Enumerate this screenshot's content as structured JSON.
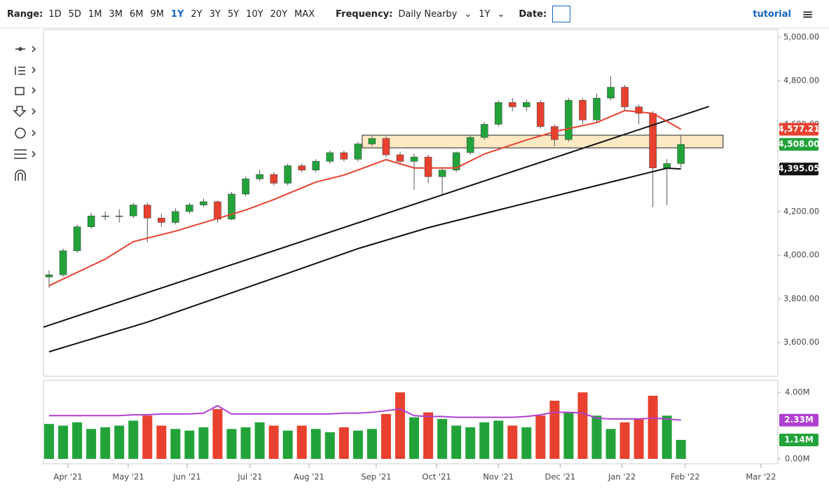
{
  "toolbar": {
    "range_label": "Range:",
    "ranges": [
      "1D",
      "5D",
      "1M",
      "3M",
      "6M",
      "9M",
      "1Y",
      "2Y",
      "3Y",
      "5Y",
      "10Y",
      "20Y",
      "MAX"
    ],
    "selected_range_index": 6,
    "frequency_label": "Frequency:",
    "frequency": "Daily Nearby",
    "period": "1Y",
    "date_label": "Date:",
    "tutorial": "tutorial"
  },
  "chart_data": {
    "type": "candlestick",
    "up_color": "#22a33a",
    "down_color": "#e8412f",
    "xlim": [
      -0.4,
      51.9
    ],
    "xticks": [
      {
        "value": 1.35,
        "label": "Apr '21"
      },
      {
        "value": 5.64,
        "label": "May '21"
      },
      {
        "value": 9.83,
        "label": "Jun '21"
      },
      {
        "value": 14.32,
        "label": "Jul '21"
      },
      {
        "value": 18.51,
        "label": "Aug '21"
      },
      {
        "value": 23.3,
        "label": "Sep '21"
      },
      {
        "value": 27.6,
        "label": "Oct '21"
      },
      {
        "value": 32.0,
        "label": "Nov '21"
      },
      {
        "value": 36.4,
        "label": "Dec '21"
      },
      {
        "value": 40.8,
        "label": "Jan '22"
      },
      {
        "value": 45.3,
        "label": "Feb '22"
      },
      {
        "value": 50.7,
        "label": "Mar '22"
      }
    ],
    "ylim": [
      3445,
      5035
    ],
    "yticks": [
      {
        "value": 3600,
        "label": "3,600.00"
      },
      {
        "value": 3800,
        "label": "3,800.00"
      },
      {
        "value": 4000,
        "label": "4,000.00"
      },
      {
        "value": 4200,
        "label": "4,200.00"
      },
      {
        "value": 4400,
        "label": "4,400.00"
      },
      {
        "value": 4600,
        "label": "4,600.00"
      },
      {
        "value": 4800,
        "label": "4,800.00"
      },
      {
        "value": 5000,
        "label": "5,000.00"
      }
    ],
    "open": [
      3900,
      3910,
      4020,
      4130,
      4180,
      4180,
      4180,
      4230,
      4170,
      4150,
      4200,
      4230,
      4245,
      4165,
      4280,
      4350,
      4370,
      4330,
      4410,
      4390,
      4430,
      4470,
      4440,
      4510,
      4535,
      4460,
      4430,
      4450,
      4360,
      4390,
      4470,
      4540,
      4600,
      4700,
      4680,
      4700,
      4590,
      4530,
      4710,
      4620,
      4720,
      4770,
      4680,
      4650,
      4400,
      4420
    ],
    "high": [
      3930,
      4030,
      4140,
      4195,
      4200,
      4210,
      4240,
      4240,
      4190,
      4215,
      4240,
      4260,
      4250,
      4290,
      4360,
      4390,
      4380,
      4420,
      4420,
      4440,
      4480,
      4480,
      4520,
      4545,
      4545,
      4475,
      4465,
      4460,
      4400,
      4475,
      4550,
      4610,
      4710,
      4720,
      4715,
      4710,
      4600,
      4720,
      4720,
      4740,
      4820,
      4780,
      4690,
      4660,
      4440,
      4550
    ],
    "low": [
      3850,
      3900,
      4010,
      4120,
      4160,
      4150,
      4170,
      4060,
      4130,
      4140,
      4190,
      4220,
      4150,
      4160,
      4270,
      4340,
      4320,
      4320,
      4380,
      4380,
      4420,
      4430,
      4430,
      4500,
      4450,
      4420,
      4300,
      4330,
      4280,
      4380,
      4460,
      4530,
      4590,
      4660,
      4660,
      4580,
      4500,
      4520,
      4600,
      4610,
      4710,
      4660,
      4600,
      4220,
      4230,
      4400
    ],
    "close": [
      3910,
      4020,
      4130,
      4180,
      4180,
      4180,
      4230,
      4170,
      4150,
      4200,
      4230,
      4245,
      4165,
      4280,
      4350,
      4370,
      4330,
      4410,
      4390,
      4430,
      4470,
      4440,
      4510,
      4535,
      4460,
      4430,
      4450,
      4360,
      4390,
      4470,
      4540,
      4600,
      4700,
      4680,
      4700,
      4590,
      4530,
      4710,
      4620,
      4720,
      4770,
      4680,
      4650,
      4400,
      4420,
      4508
    ],
    "last_price": {
      "value": 4508,
      "label": "4,508.00",
      "color": "#22a33a"
    },
    "moving_averages": [
      {
        "color": "#e8412f",
        "x": [
          0,
          4,
          6,
          9,
          11,
          14,
          16,
          19,
          21,
          24,
          26,
          29,
          31,
          34,
          36,
          39,
          41,
          43,
          45
        ],
        "values": [
          3860,
          3982,
          4062,
          4110,
          4149,
          4207,
          4255,
          4335,
          4367,
          4438,
          4400,
          4400,
          4464,
          4528,
          4566,
          4608,
          4663,
          4650,
          4577.21
        ],
        "last": {
          "value": 4577.21,
          "label": "4,577.21"
        }
      },
      {
        "color": "#111111",
        "x": [
          0,
          7,
          12,
          17,
          22,
          27,
          32,
          37,
          39,
          42,
          44,
          45
        ],
        "values": [
          3557,
          3693,
          3805,
          3917,
          4030,
          4126,
          4207,
          4287,
          4319,
          4367,
          4399,
          4395.05
        ],
        "last": {
          "value": 4395.05,
          "label": "4,395.05"
        }
      }
    ],
    "trendline": {
      "color": "#111111",
      "x": [
        -0.4,
        47
      ],
      "values": [
        3670,
        4682
      ]
    },
    "zone": {
      "color": "#fde9c4",
      "x": [
        22.3,
        48
      ],
      "values": [
        4492,
        4550
      ]
    },
    "volume": {
      "ylim": [
        0,
        4.72
      ],
      "yticks": [
        {
          "value": 0,
          "label": "0.00M"
        },
        {
          "value": 4,
          "label": "4.00M"
        }
      ],
      "values": [
        2.1,
        2.0,
        2.2,
        1.8,
        1.9,
        2.0,
        2.3,
        2.6,
        2.0,
        1.8,
        1.7,
        1.9,
        3.0,
        1.8,
        1.9,
        2.2,
        2.0,
        1.7,
        2.0,
        1.8,
        1.6,
        1.9,
        1.7,
        1.8,
        2.7,
        4.0,
        2.5,
        2.8,
        2.4,
        2.0,
        1.9,
        2.2,
        2.3,
        2.0,
        1.9,
        2.6,
        3.5,
        2.8,
        4.0,
        2.6,
        1.8,
        2.2,
        2.4,
        3.8,
        2.6,
        1.14
      ],
      "last_label": "1.14M",
      "average": {
        "color": "#b040d0",
        "values": [
          2.6,
          2.6,
          2.6,
          2.6,
          2.6,
          2.6,
          2.65,
          2.65,
          2.7,
          2.7,
          2.7,
          2.75,
          3.2,
          2.7,
          2.7,
          2.7,
          2.7,
          2.7,
          2.7,
          2.7,
          2.7,
          2.75,
          2.75,
          2.8,
          2.9,
          3.0,
          2.6,
          2.55,
          2.55,
          2.5,
          2.5,
          2.5,
          2.5,
          2.5,
          2.55,
          2.65,
          2.8,
          2.8,
          2.75,
          2.45,
          2.4,
          2.4,
          2.4,
          2.45,
          2.4,
          2.33
        ],
        "last_label": "2.33M"
      }
    }
  }
}
